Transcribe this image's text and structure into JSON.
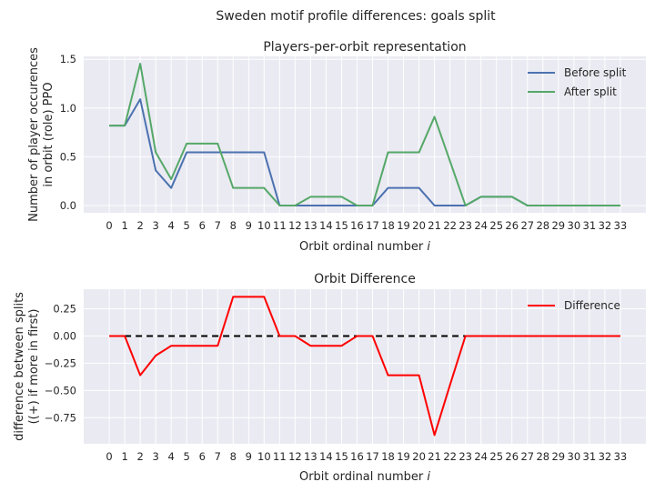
{
  "suptitle": "Sweden motif profile differences: goals split",
  "colors": {
    "axes_bg": "#EAEAF2",
    "grid": "#FFFFFF",
    "before": "#4C72B0",
    "after": "#55A868",
    "difference": "#FF0000",
    "zero_line": "#000000"
  },
  "chart_data": [
    {
      "type": "line",
      "title": "Players-per-orbit representation",
      "xlabel": "Orbit ordinal number i",
      "xlabel_main": "Orbit ordinal number ",
      "xlabel_var": "i",
      "ylabel_lines": [
        "Number of player occurences",
        "in orbit (role) PPO"
      ],
      "x": [
        0,
        1,
        2,
        3,
        4,
        5,
        6,
        7,
        8,
        9,
        10,
        11,
        12,
        13,
        14,
        15,
        16,
        17,
        18,
        19,
        20,
        21,
        22,
        23,
        24,
        25,
        26,
        27,
        28,
        29,
        30,
        31,
        32,
        33
      ],
      "xlim": [
        -1.65,
        34.65
      ],
      "ylim": [
        -0.075,
        1.53
      ],
      "yticks": [
        "0.0",
        "0.5",
        "1.0",
        "1.5"
      ],
      "ytick_values": [
        0.0,
        0.5,
        1.0,
        1.5
      ],
      "grid": true,
      "legend_position": "upper right",
      "series": [
        {
          "name": "Before split",
          "color": "#4C72B0",
          "values": [
            0.82,
            0.82,
            1.09,
            0.36,
            0.18,
            0.545,
            0.545,
            0.545,
            0.545,
            0.545,
            0.545,
            0,
            0,
            0,
            0,
            0,
            0,
            0,
            0.18,
            0.18,
            0.18,
            0,
            0,
            0,
            0.09,
            0.09,
            0.09,
            0,
            0,
            0,
            0,
            0,
            0,
            0
          ]
        },
        {
          "name": "After split",
          "color": "#55A868",
          "values": [
            0.82,
            0.82,
            1.455,
            0.545,
            0.27,
            0.635,
            0.635,
            0.635,
            0.18,
            0.18,
            0.18,
            0,
            0,
            0.09,
            0.09,
            0.09,
            0,
            0,
            0.545,
            0.545,
            0.545,
            0.91,
            0.455,
            0,
            0.09,
            0.09,
            0.09,
            0,
            0,
            0,
            0,
            0,
            0,
            0
          ]
        }
      ]
    },
    {
      "type": "line",
      "title": "Orbit Difference",
      "xlabel": "Orbit ordinal number i",
      "xlabel_main": "Orbit ordinal number ",
      "xlabel_var": "i",
      "ylabel_lines": [
        "difference between splits",
        "((+) if more in first)"
      ],
      "x": [
        0,
        1,
        2,
        3,
        4,
        5,
        6,
        7,
        8,
        9,
        10,
        11,
        12,
        13,
        14,
        15,
        16,
        17,
        18,
        19,
        20,
        21,
        22,
        23,
        24,
        25,
        26,
        27,
        28,
        29,
        30,
        31,
        32,
        33
      ],
      "xlim": [
        -1.65,
        34.65
      ],
      "ylim": [
        -0.99,
        0.43
      ],
      "yticks": [
        "0.25",
        "0.00",
        "−0.25",
        "−0.50",
        "−0.75"
      ],
      "ytick_values": [
        0.25,
        0.0,
        -0.25,
        -0.5,
        -0.75
      ],
      "grid": true,
      "legend_position": "upper right",
      "zero_line": {
        "from": 1,
        "to": 33,
        "style": "dashed"
      },
      "series": [
        {
          "name": "Difference",
          "color": "#FF0000",
          "values": [
            0,
            0,
            -0.36,
            -0.18,
            -0.09,
            -0.09,
            -0.09,
            -0.09,
            0.36,
            0.36,
            0.36,
            0,
            0,
            -0.09,
            -0.09,
            -0.09,
            0,
            0,
            -0.36,
            -0.36,
            -0.36,
            -0.91,
            -0.45,
            0,
            0,
            0,
            0,
            0,
            0,
            0,
            0,
            0,
            0,
            0
          ]
        }
      ]
    }
  ]
}
